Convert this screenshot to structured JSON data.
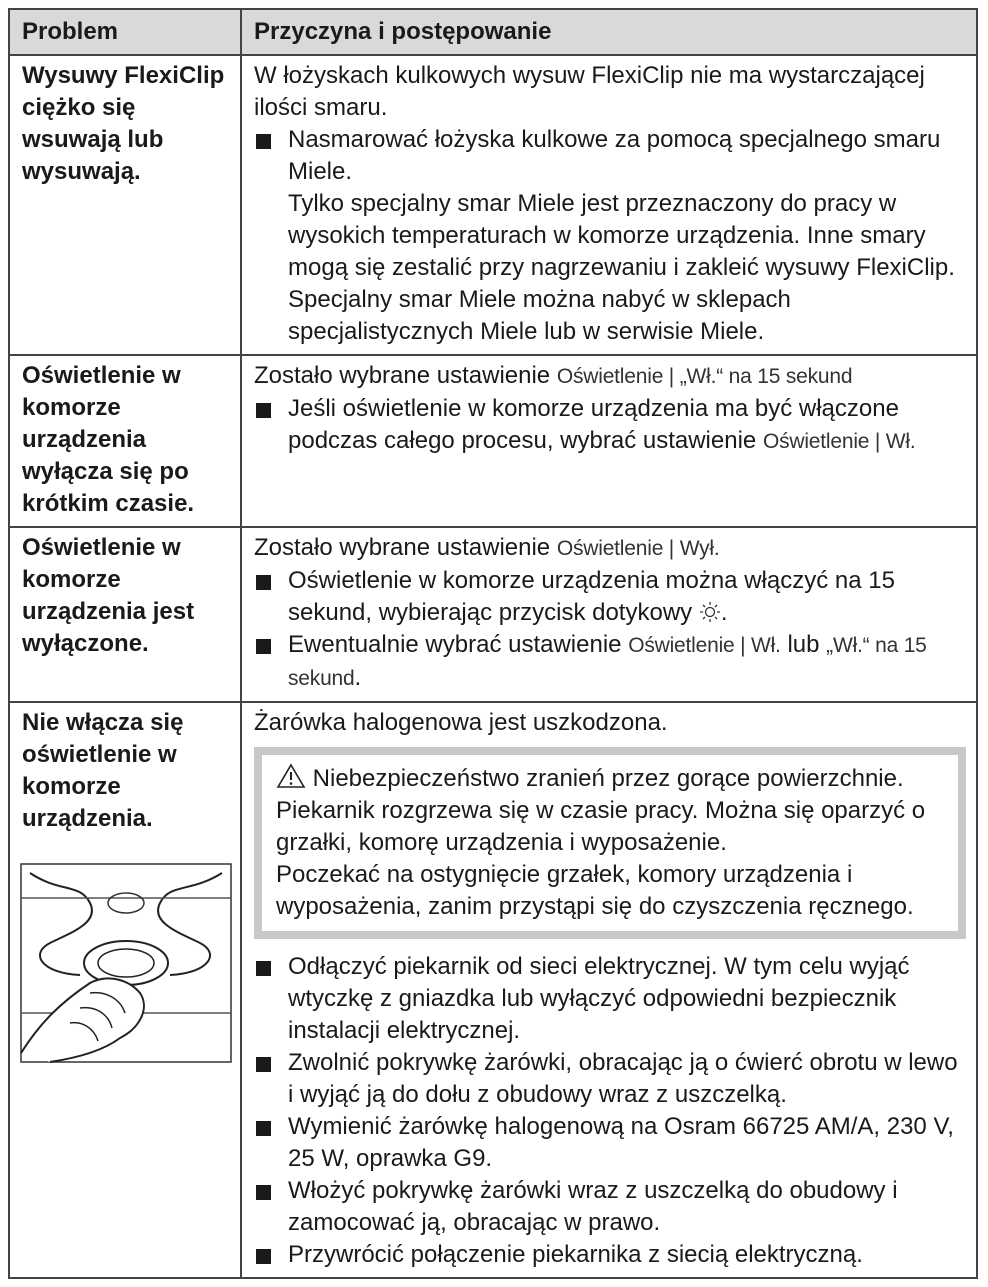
{
  "table": {
    "headers": [
      "Problem",
      "Przyczyna i postępowanie"
    ],
    "rows": [
      {
        "problem": "Wysuwy FlexiClip ciężko się wsuwają lub wysuwają.",
        "cause": "W łożyskach kulkowych wysuw FlexiClip nie ma wystarczającej ilości smaru.",
        "steps": [
          {
            "text": "Nasmarować łożyska kulkowe za pomocą specjalnego smaru Miele.",
            "note": "Tylko specjalny smar Miele jest przeznaczony do pracy w wysokich temperaturach w komorze urządzenia. Inne smary mogą się zestalić przy nagrzewaniu i zakleić wysuwy FlexiClip. Specjalny smar Miele można nabyć w sklepach specjalistycznych Miele lub w serwisie Miele."
          }
        ]
      },
      {
        "problem": "Oświetlenie w komorze urządzenia wyłącza się po krótkim czasie.",
        "cause": [
          "Zostało wybrane ustawienie",
          "Oświetlenie | „Wł.“ na 15 sekund"
        ],
        "steps": [
          [
            "Jeśli oświetlenie w komorze urządzenia ma być włączone podczas całego procesu, wybrać ustawienie",
            "Oświetlenie | Wł."
          ]
        ]
      },
      {
        "problem": "Oświetlenie w komorze urządzenia jest wyłączone.",
        "cause": [
          "Zostało wybrane ustawienie",
          "Oświetlenie | Wył."
        ],
        "steps": [
          [
            "Oświetlenie w komorze urządzenia można włączyć na 15 sekund, wybierając przycisk dotykowy",
            "."
          ],
          [
            "Ewentualnie wybrać ustawienie",
            "Oświetlenie | Wł.",
            "lub",
            "„Wł.“ na 15 sekund",
            "."
          ]
        ]
      },
      {
        "problem": "Nie włącza się oświetlenie w komorze urządzenia.",
        "cause": "Żarówka halogenowa jest uszkodzona.",
        "warning": {
          "title": "Niebezpieczeństwo zranień przez gorące powierzchnie.",
          "text": [
            "Piekarnik rozgrzewa się w czasie pracy. Można się oparzyć o grzałki, komorę urządzenia i wyposażenie.",
            "Poczekać na ostygnięcie grzałek, komory urządzenia i wyposażenia, zanim przystąpi się do czyszczenia ręcznego."
          ]
        },
        "steps": [
          "Odłączyć piekarnik od sieci elektrycznej. W tym celu wyjąć wtyczkę z gniazdka lub wyłączyć odpowiedni bezpiecznik instalacji elektrycznej.",
          "Zwolnić pokrywkę żarówki, obracając ją o ćwierć obrotu w lewo i wyjąć ją do dołu z obudowy wraz z uszczelką.",
          "Wymienić żarówkę halogenową na Osram 66725 AM/A, 230 V, 25 W, oprawka G9.",
          "Włożyć pokrywkę żarówki wraz z uszczelką do obudowy i zamocować ją, obracając w prawo.",
          "Przywrócić połączenie piekarnika z siecią elektryczną."
        ]
      }
    ]
  }
}
